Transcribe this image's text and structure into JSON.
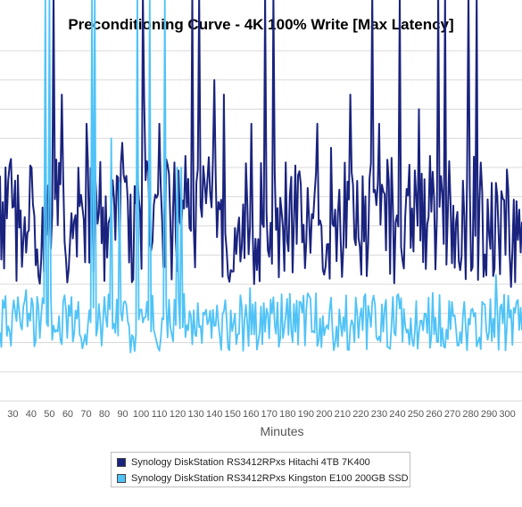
{
  "chart_data": {
    "type": "line",
    "title": "Preconditioning Curve - 4K 100% Write [Max Latency]",
    "xlabel": "Minutes",
    "ylabel": "",
    "xlim": [
      23,
      308
    ],
    "ylim": [
      0,
      12
    ],
    "x_ticks": [
      30,
      40,
      50,
      60,
      70,
      80,
      90,
      100,
      110,
      120,
      130,
      140,
      150,
      160,
      170,
      180,
      190,
      200,
      210,
      220,
      230,
      240,
      250,
      260,
      270,
      280,
      290,
      300
    ],
    "grid": true,
    "legend_position": "bottom",
    "series": [
      {
        "name": "Synology DiskStation RS3412RPxs Hitachi 4TB 7K400",
        "color": "#1a237e",
        "base": 6.2,
        "amp": 2.2,
        "spikes": [
          [
            52,
            14
          ],
          [
            57,
            10.5
          ],
          [
            70,
            9.5
          ],
          [
            101,
            14
          ],
          [
            110,
            9.5
          ],
          [
            128,
            14
          ],
          [
            132,
            14
          ],
          [
            140,
            11
          ],
          [
            145,
            10.5
          ],
          [
            160,
            9.5
          ],
          [
            168,
            14
          ],
          [
            172,
            14
          ],
          [
            196,
            9.5
          ],
          [
            214,
            10.5
          ],
          [
            226,
            14
          ],
          [
            230,
            9.5
          ],
          [
            241,
            14
          ],
          [
            252,
            10
          ],
          [
            262,
            14
          ],
          [
            266,
            14
          ],
          [
            279,
            14
          ],
          [
            283,
            14
          ]
        ]
      },
      {
        "name": "Synology DiskStation RS3412RPxs Kingston E100 200GB SSD",
        "color": "#4fc3f7",
        "base": 2.7,
        "amp": 1.0,
        "spikes": [
          [
            48,
            14
          ],
          [
            50,
            14
          ],
          [
            73,
            14
          ],
          [
            75,
            14
          ],
          [
            84,
            9
          ],
          [
            88,
            7.5
          ],
          [
            98,
            14
          ],
          [
            105,
            14
          ],
          [
            113,
            14
          ],
          [
            120,
            8
          ],
          [
            122,
            8
          ]
        ]
      }
    ]
  }
}
